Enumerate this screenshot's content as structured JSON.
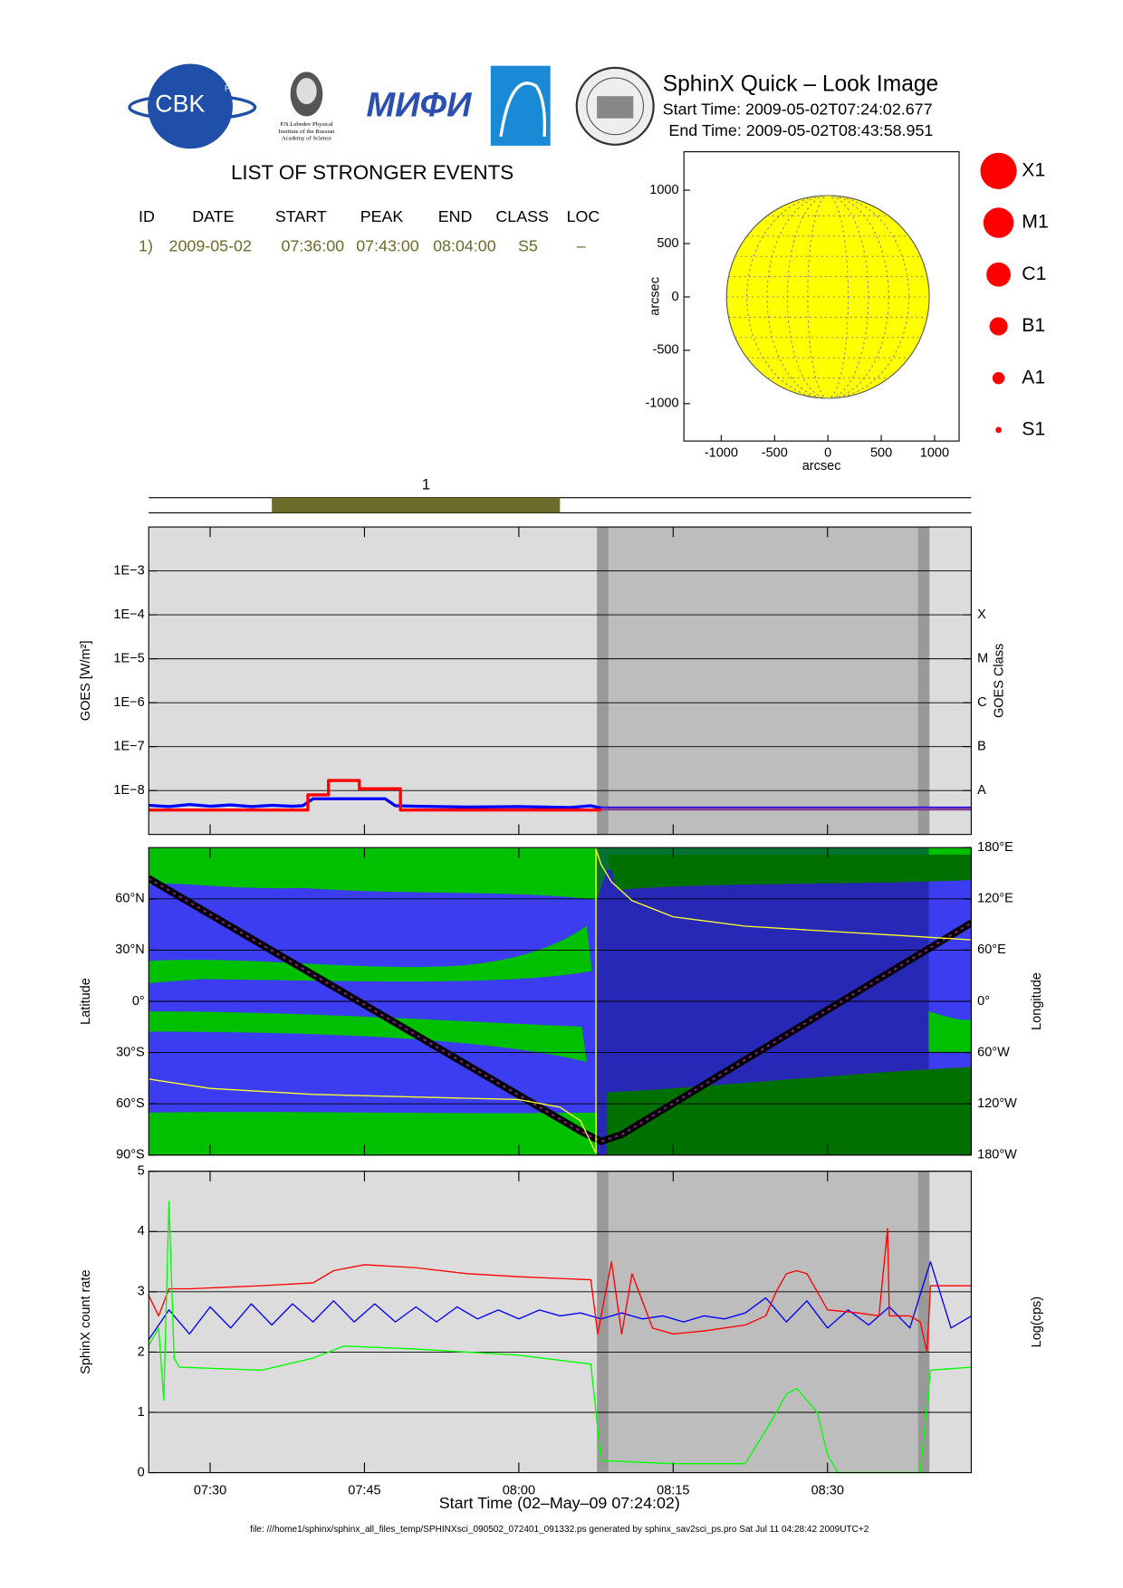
{
  "header": {
    "title": "SphinX Quick – Look Image",
    "start": "Start Time: 2009-05-02T07:24:02.677",
    "end": "End Time: 2009-05-02T08:43:58.951"
  },
  "logos": {
    "cbk": "CBK",
    "pan": "PAN",
    "lebedev": [
      "P.N.Lebedev Physical",
      "Institute of the Russian",
      "Academy of Science"
    ],
    "mifi": "МИФИ"
  },
  "events": {
    "title": "LIST OF STRONGER EVENTS",
    "columns": [
      "ID",
      "DATE",
      "START",
      "PEAK",
      "END",
      "CLASS",
      "LOC"
    ],
    "rows": [
      [
        "1)",
        "2009-05-02",
        "07:36:00",
        "07:43:00",
        "08:04:00",
        "S5",
        "–"
      ]
    ]
  },
  "event_bar": {
    "labels": [
      "1"
    ]
  },
  "classes": [
    "X1",
    "M1",
    "C1",
    "B1",
    "A1",
    "S1"
  ],
  "footer": "file: ///home1/sphinx/sphinx_all_files_temp/SPHINXsci_090502_072401_091332.ps generated by sphinx_sav2sci_ps.pro Sat Jul 11 04:28:42 2009UTC+2",
  "chart_data": [
    {
      "type": "disk",
      "xlabel": "arcsec",
      "ylabel": "arcsec",
      "xlim": [
        -1350,
        1230
      ],
      "ylim": [
        -1350,
        1360
      ],
      "xticks": [
        -1000,
        -500,
        0,
        500,
        1000
      ],
      "yticks": [
        -1000,
        -500,
        0,
        500,
        1000
      ],
      "radius": 950,
      "color": "#ffff00"
    },
    {
      "type": "line",
      "log_y": true,
      "ylabel": "GOES [W/m²]",
      "y2label": "GOES Class",
      "xlim": [
        "07:24:02",
        "08:43:58"
      ],
      "ylim": [
        1e-09,
        0.01
      ],
      "yticks": [
        {
          "value": 1e-08,
          "label": "1E−8"
        },
        {
          "value": 1e-07,
          "label": "1E−7"
        },
        {
          "value": 1e-06,
          "label": "1E−6"
        },
        {
          "value": 1e-05,
          "label": "1E−5"
        },
        {
          "value": 0.0001,
          "label": "1E−4"
        },
        {
          "value": 0.001,
          "label": "1E−3"
        }
      ],
      "y2lim": [
        1e-09,
        0.01
      ],
      "y2ticks": [
        {
          "value": 1e-08,
          "label": "A"
        },
        {
          "value": 1e-07,
          "label": "B"
        },
        {
          "value": 1e-06,
          "label": "C"
        },
        {
          "value": 1e-05,
          "label": "M"
        },
        {
          "value": 0.0001,
          "label": "X"
        }
      ],
      "grid": true,
      "night": [
        "08:07:36",
        "08:39:54"
      ],
      "transitions": [
        [
          "08:07:36",
          "08:08:42"
        ],
        [
          "08:38:48",
          "08:39:54"
        ]
      ],
      "series": [
        {
          "color": "#0000ff",
          "x": [
            "07:24",
            "07:26",
            "07:28",
            "07:30",
            "07:32",
            "07:34",
            "07:36",
            "07:38",
            "07:39",
            "07:40",
            "07:47",
            "07:48",
            "07:50",
            "07:55",
            "08:00",
            "08:05",
            "08:07",
            "08:08",
            "08:44"
          ],
          "values": [
            4.6e-09,
            4.3e-09,
            4.8e-09,
            4.4e-09,
            4.7e-09,
            4.3e-09,
            4.6e-09,
            4.4e-09,
            4.5e-09,
            6.5e-09,
            6.5e-09,
            4.5e-09,
            4.4e-09,
            4.2e-09,
            4.3e-09,
            4.1e-09,
            4.5e-09,
            4e-09,
            4e-09
          ]
        },
        {
          "color": "#ff0000",
          "x": [
            "07:24",
            "07:39:30",
            "07:39:30",
            "07:41:30",
            "07:41:30",
            "07:44:30",
            "07:44:30",
            "07:48:30",
            "07:48:30",
            "08:08"
          ],
          "values": [
            3.6e-09,
            3.6e-09,
            8e-09,
            8e-09,
            1.7e-08,
            1.7e-08,
            1.1e-08,
            1.1e-08,
            3.6e-09,
            3.6e-09
          ]
        },
        {
          "color": "#8040a0",
          "x": [
            "08:08",
            "08:44"
          ],
          "values": [
            3.8e-09,
            3.8e-09
          ]
        }
      ]
    },
    {
      "type": "line",
      "ylabel": "Latitude",
      "y2label": "Longitude",
      "xlim": [
        "07:24:02",
        "08:43:58"
      ],
      "ylim": [
        -90,
        90
      ],
      "yticks": [
        {
          "value": -90,
          "label": "90°S"
        },
        {
          "value": -60,
          "label": "60°S"
        },
        {
          "value": -30,
          "label": "30°S"
        },
        {
          "value": 0,
          "label": "0°"
        },
        {
          "value": 30,
          "label": "30°N"
        },
        {
          "value": 60,
          "label": "60°N"
        }
      ],
      "y2lim": [
        -180,
        180
      ],
      "y2ticks": [
        {
          "value": -180,
          "label": "180°W"
        },
        {
          "value": -120,
          "label": "120°W"
        },
        {
          "value": -60,
          "label": "60°W"
        },
        {
          "value": 0,
          "label": "0°"
        },
        {
          "value": 60,
          "label": "60°E"
        },
        {
          "value": 120,
          "label": "120°E"
        },
        {
          "value": 180,
          "label": "180°E"
        }
      ],
      "grid": true,
      "series": [
        {
          "color": "#000000",
          "x": [
            "07:24",
            "08:06",
            "08:08",
            "08:10",
            "08:44"
          ],
          "values": [
            72,
            -76,
            -82,
            -78,
            46
          ]
        },
        {
          "color": "#ffff30",
          "axis": "y2",
          "x": [
            "07:24",
            "07:30",
            "07:40",
            "07:50",
            "08:00",
            "08:04",
            "08:06",
            "08:07:30",
            "08:07:30",
            "08:08",
            "08:09",
            "08:11",
            "08:15",
            "08:22",
            "08:44"
          ],
          "values": [
            -91,
            -102,
            -109,
            -112,
            -115,
            -124,
            -140,
            -178,
            178,
            160,
            140,
            118,
            99,
            88,
            72
          ]
        }
      ]
    },
    {
      "type": "line",
      "ylabel": "SphinX count rate",
      "y2label": "Log(cps)",
      "xlabel": "Start Time (02–May–09 07:24:02)",
      "xlim": [
        "07:24:02",
        "08:43:58"
      ],
      "ylim": [
        0,
        5
      ],
      "yticks": [
        0,
        1,
        2,
        3,
        4,
        5
      ],
      "xticks": [
        "07:30",
        "07:45",
        "08:00",
        "08:15",
        "08:30"
      ],
      "grid": true,
      "series": [
        {
          "color": "#0000ff",
          "x": [
            "07:24",
            "07:26",
            "07:28",
            "07:30",
            "07:32",
            "07:34",
            "07:36",
            "07:38",
            "07:40",
            "07:42",
            "07:44",
            "07:46",
            "07:48",
            "07:50",
            "07:52",
            "07:54",
            "07:56",
            "07:58",
            "08:00",
            "08:02",
            "08:04",
            "08:06",
            "08:08",
            "08:10",
            "08:12",
            "08:14",
            "08:16",
            "08:18",
            "08:20",
            "08:22",
            "08:24",
            "08:26",
            "08:28",
            "08:30",
            "08:32",
            "08:34",
            "08:36",
            "08:38",
            "08:40",
            "08:42",
            "08:44"
          ],
          "values": [
            2.2,
            2.7,
            2.3,
            2.75,
            2.4,
            2.8,
            2.45,
            2.8,
            2.5,
            2.85,
            2.5,
            2.8,
            2.5,
            2.75,
            2.5,
            2.75,
            2.55,
            2.7,
            2.55,
            2.7,
            2.6,
            2.65,
            2.55,
            2.65,
            2.55,
            2.6,
            2.5,
            2.6,
            2.55,
            2.65,
            2.9,
            2.5,
            2.85,
            2.4,
            2.7,
            2.45,
            2.75,
            2.4,
            3.5,
            2.4,
            2.6
          ]
        },
        {
          "color": "#ff0000",
          "x": [
            "07:24",
            "07:25",
            "07:26",
            "07:28",
            "07:35",
            "07:40",
            "07:42",
            "07:45",
            "07:50",
            "07:55",
            "08:00",
            "08:07",
            "08:07:40",
            "08:09",
            "08:10",
            "08:11",
            "08:13",
            "08:15",
            "08:18",
            "08:20",
            "08:22",
            "08:24",
            "08:25",
            "08:26",
            "08:27",
            "08:28",
            "08:29",
            "08:30",
            "08:33",
            "08:35",
            "08:35:50",
            "08:36",
            "08:38",
            "08:39",
            "08:39:40",
            "08:40",
            "08:44"
          ],
          "values": [
            2.95,
            2.6,
            3.05,
            3.05,
            3.1,
            3.15,
            3.35,
            3.45,
            3.4,
            3.3,
            3.25,
            3.2,
            2.3,
            3.5,
            2.3,
            3.3,
            2.4,
            2.3,
            2.35,
            2.4,
            2.45,
            2.6,
            3.0,
            3.3,
            3.35,
            3.3,
            3.0,
            2.7,
            2.65,
            2.6,
            4.05,
            2.6,
            2.6,
            2.5,
            2.0,
            3.1,
            3.1
          ]
        },
        {
          "color": "#00ff00",
          "x": [
            "07:24",
            "07:25",
            "07:25:30",
            "07:26",
            "07:26:30",
            "07:27",
            "07:35",
            "07:40",
            "07:43",
            "07:50",
            "08:00",
            "08:07",
            "08:08",
            "08:15",
            "08:22",
            "08:24",
            "08:26",
            "08:27",
            "08:29",
            "08:30",
            "08:31",
            "08:39",
            "08:40",
            "08:44"
          ],
          "values": [
            2.1,
            2.4,
            1.2,
            4.5,
            1.9,
            1.75,
            1.7,
            1.9,
            2.1,
            2.05,
            1.95,
            1.8,
            0.2,
            0.15,
            0.15,
            0.7,
            1.3,
            1.4,
            1.0,
            0.3,
            0.0,
            0.0,
            1.7,
            1.75
          ]
        }
      ]
    }
  ]
}
